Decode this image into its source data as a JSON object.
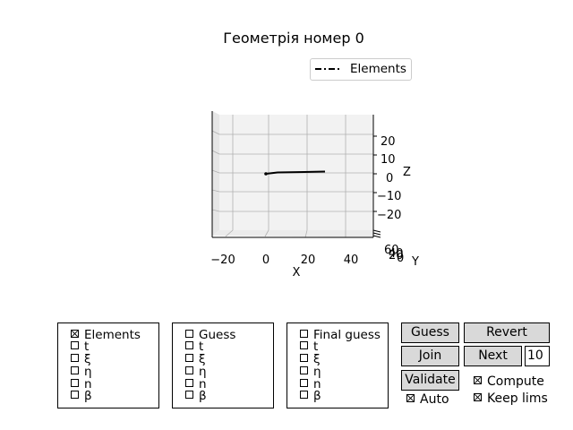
{
  "title": "Геометрія номер 0",
  "legend": {
    "label": "Elements",
    "style": "dash-dot"
  },
  "axes": {
    "x_label": "X",
    "y_label": "Y",
    "z_label": "Z",
    "x_ticks": [
      "−20",
      "0",
      "20",
      "40"
    ],
    "z_ticks": [
      "20",
      "10",
      "0",
      "−10",
      "−20"
    ],
    "y_ticks": [
      "60",
      "40",
      "20",
      "0"
    ]
  },
  "panels": [
    {
      "items": [
        {
          "label": "Elements",
          "checked": true
        },
        {
          "label": "t",
          "checked": false
        },
        {
          "label": "ξ",
          "checked": false
        },
        {
          "label": "η",
          "checked": false
        },
        {
          "label": "n",
          "checked": false
        },
        {
          "label": "β",
          "checked": false
        }
      ]
    },
    {
      "items": [
        {
          "label": "Guess",
          "checked": false
        },
        {
          "label": "t",
          "checked": false
        },
        {
          "label": "ξ",
          "checked": false
        },
        {
          "label": "η",
          "checked": false
        },
        {
          "label": "n",
          "checked": false
        },
        {
          "label": "β",
          "checked": false
        }
      ]
    },
    {
      "items": [
        {
          "label": "Final guess",
          "checked": false
        },
        {
          "label": "t",
          "checked": false
        },
        {
          "label": "ξ",
          "checked": false
        },
        {
          "label": "η",
          "checked": false
        },
        {
          "label": "n",
          "checked": false
        },
        {
          "label": "β",
          "checked": false
        }
      ]
    }
  ],
  "buttons": {
    "guess": "Guess",
    "revert": "Revert",
    "join": "Join",
    "next": "Next",
    "validate": "Validate"
  },
  "next_count": "10",
  "toggles": {
    "auto": {
      "label": "Auto",
      "checked": true
    },
    "compute": {
      "label": "Compute",
      "checked": true
    },
    "keep_lims": {
      "label": "Keep lims",
      "checked": true
    }
  }
}
